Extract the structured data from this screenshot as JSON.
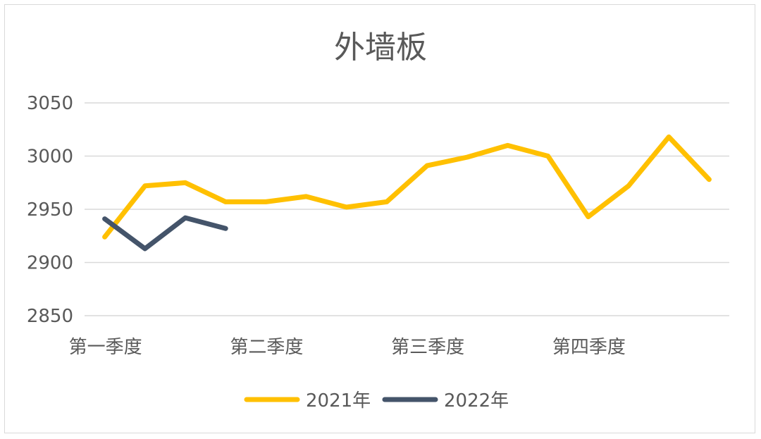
{
  "chart_data": {
    "type": "line",
    "title": "外墙板",
    "xlabel": "",
    "ylabel": "",
    "ylim": [
      2850,
      3050
    ],
    "yticks": [
      "3050",
      "3000",
      "2950",
      "2900",
      "2850"
    ],
    "x_tick_labels": [
      "第一季度",
      "第二季度",
      "第三季度",
      "第四季度"
    ],
    "points_per_category": 4,
    "grid": true,
    "legend_position": "bottom",
    "series": [
      {
        "name": "2021年",
        "color": "#FFC000",
        "values": [
          2924,
          2972,
          2975,
          2957,
          2957,
          2962,
          2952,
          2957,
          2991,
          2999,
          3010,
          3000,
          2943,
          2972,
          3018,
          2978
        ]
      },
      {
        "name": "2022年",
        "color": "#44546A",
        "values": [
          2941,
          2913,
          2942,
          2932
        ]
      }
    ]
  }
}
